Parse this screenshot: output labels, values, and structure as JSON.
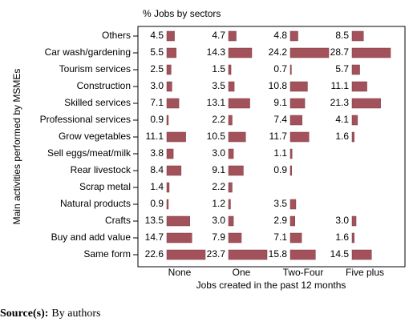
{
  "chart_data": {
    "type": "bar",
    "orientation": "horizontal",
    "title": "% Jobs by sectors",
    "y_label": "Main activities performed by MSMEs",
    "x_label": "Jobs created in the past 12 months",
    "categories": [
      "Others",
      "Car wash/gardening",
      "Tourism services",
      "Construction",
      "Skilled services",
      "Professional services",
      "Grow vegetables",
      "Sell eggs/meat/milk",
      "Rear livestock",
      "Scrap metal",
      "Natural products",
      "Crafts",
      "Buy and add value",
      "Same form"
    ],
    "series": [
      {
        "name": "None",
        "color": "#a3525b",
        "values": [
          4.5,
          5.5,
          2.5,
          3.0,
          7.1,
          0.9,
          11.1,
          3.8,
          8.4,
          1.4,
          0.9,
          13.5,
          14.7,
          22.6
        ],
        "value_labels": [
          "4.5",
          "5.5",
          "2.5",
          "3.0",
          "7.1",
          "0.9",
          "11.1",
          "3.8",
          "8.4",
          "1.4",
          "0.9",
          "13.5",
          "14.7",
          "22.6"
        ]
      },
      {
        "name": "One",
        "color": "#a3525b",
        "values": [
          4.7,
          14.3,
          1.5,
          3.5,
          13.1,
          2.2,
          10.5,
          3.0,
          9.1,
          2.2,
          1.2,
          3.0,
          7.9,
          23.7
        ],
        "value_labels": [
          "4.7",
          "14.3",
          "1.5",
          "3.5",
          "13.1",
          "2.2",
          "10.5",
          "3.0",
          "9.1",
          "2.2",
          "1.2",
          "3.0",
          "7.9",
          "23.7"
        ]
      },
      {
        "name": "Two-Four",
        "color": "#a3525b",
        "values": [
          4.8,
          24.2,
          0.7,
          10.8,
          9.1,
          7.4,
          11.7,
          1.1,
          0.9,
          null,
          3.5,
          2.9,
          7.1,
          15.8
        ],
        "value_labels": [
          "4.8",
          "24.2",
          "0.7",
          "10.8",
          "9.1",
          "7.4",
          "11.7",
          "1.1",
          "0.9",
          null,
          "3.5",
          "2.9",
          "7.1",
          "15.8"
        ]
      },
      {
        "name": "Five plus",
        "color": "#a3525b",
        "values": [
          8.5,
          28.7,
          5.7,
          11.1,
          21.3,
          4.1,
          1.6,
          null,
          null,
          null,
          null,
          3.0,
          1.6,
          14.5
        ],
        "value_labels": [
          "8.5",
          "28.7",
          "5.7",
          "11.1",
          "21.3",
          "4.1",
          "1.6",
          null,
          null,
          null,
          null,
          "3.0",
          "1.6",
          "14.5"
        ]
      }
    ]
  },
  "source": {
    "label": "Source(s):",
    "text": "By authors"
  }
}
